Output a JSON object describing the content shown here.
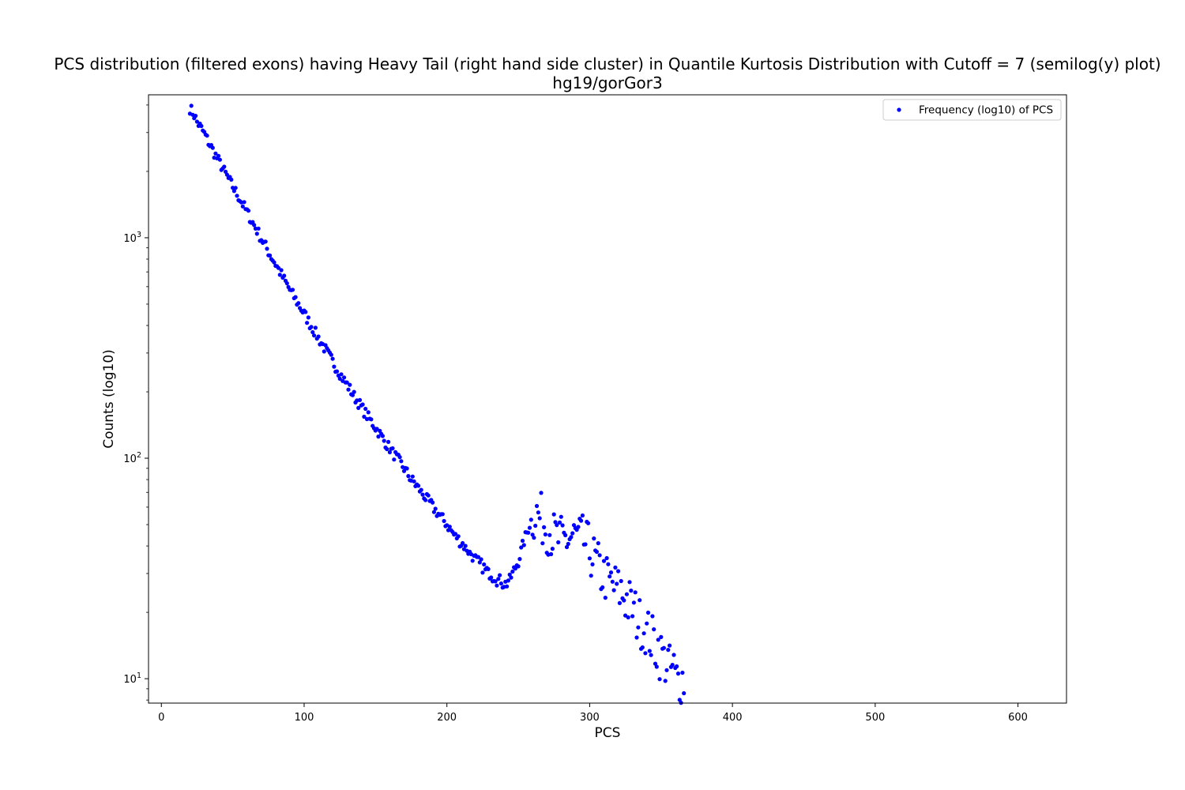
{
  "chart_data": {
    "type": "scatter",
    "title": "PCS distribution (filtered exons) having Heavy Tail (right hand side cluster) in Quantile Kurtosis Distribution with Cutoff = 7 (semilog(y) plot)",
    "subtitle": "hg19/gorGor3",
    "xlabel": "PCS",
    "ylabel": "Counts (log10)",
    "xlim": [
      -9,
      634
    ],
    "ylim": [
      7.75,
      4450
    ],
    "yscale": "log",
    "xticks": [
      0,
      100,
      200,
      300,
      400,
      500,
      600
    ],
    "xtick_labels": [
      "0",
      "100",
      "200",
      "300",
      "400",
      "500",
      "600"
    ],
    "yticks": [
      10,
      100,
      1000
    ],
    "ytick_base": "10",
    "ytick_exponents": [
      "1",
      "2",
      "3"
    ],
    "grid": false,
    "legend_position": "upper-right",
    "series": [
      {
        "name": "Frequency (log10) of PCS",
        "color": "#0000ff",
        "x_start": 20,
        "x_step": 1,
        "y": [
          3870,
          3780,
          3700,
          3600,
          3480,
          3350,
          3280,
          3200,
          3120,
          3050,
          2960,
          2890,
          2800,
          2720,
          2640,
          2570,
          2500,
          2430,
          2360,
          2300,
          2240,
          2180,
          2120,
          2060,
          2000,
          1950,
          1900,
          1850,
          1800,
          1750,
          1710,
          1660,
          1620,
          1580,
          1540,
          1500,
          1460,
          1420,
          1380,
          1340,
          1310,
          1270,
          1240,
          1200,
          1170,
          1140,
          1110,
          1080,
          1050,
          1020,
          990,
          965,
          940,
          915,
          890,
          865,
          840,
          820,
          800,
          780,
          760,
          740,
          720,
          700,
          680,
          662,
          645,
          628,
          612,
          596,
          580,
          566,
          552,
          538,
          525,
          512,
          500,
          488,
          476,
          464,
          452,
          441,
          430,
          419,
          408,
          398,
          388,
          378,
          369,
          360,
          351,
          342,
          334,
          326,
          318,
          310,
          302,
          295,
          288,
          281,
          274,
          267,
          261,
          255,
          249,
          243,
          237,
          231,
          226,
          221,
          216,
          211,
          206,
          201,
          196,
          191,
          187,
          183,
          179,
          175,
          171,
          167,
          163,
          160,
          156,
          153,
          150,
          147,
          144,
          141,
          138,
          135,
          132,
          129,
          126,
          123,
          120,
          118,
          115,
          113,
          111,
          108,
          106,
          104,
          102,
          100,
          98,
          96,
          94,
          92,
          90,
          88,
          86,
          84,
          82,
          80,
          79,
          78,
          76,
          75,
          73,
          72,
          70,
          69,
          68,
          66,
          65,
          64,
          63,
          62,
          60,
          59,
          58,
          57,
          56,
          55,
          54,
          53,
          52,
          51,
          50,
          49,
          48,
          47,
          46,
          45,
          44,
          44,
          43,
          42,
          41,
          41,
          40,
          39,
          39,
          38,
          37,
          37,
          36,
          35,
          35,
          34,
          34,
          33,
          33,
          32,
          32,
          31,
          31,
          30,
          30,
          30,
          29,
          29,
          29,
          28,
          28,
          28,
          28,
          27,
          27,
          27,
          27,
          28,
          28,
          29,
          30,
          31,
          32,
          33,
          34,
          36,
          38,
          40,
          42,
          44,
          46,
          48,
          50,
          52,
          54,
          55,
          56,
          56,
          55,
          54,
          53,
          52,
          51,
          50,
          49,
          48,
          47,
          46,
          45,
          44,
          44,
          43,
          43,
          42,
          42,
          42,
          42,
          43,
          43,
          43,
          43,
          44,
          44,
          44,
          44,
          44,
          43,
          43,
          43,
          42,
          42,
          41,
          40,
          39,
          38,
          37,
          36,
          35,
          34,
          33,
          32,
          31,
          30,
          30,
          29,
          29,
          28,
          28,
          27,
          27,
          27,
          26,
          26,
          26,
          25,
          25,
          25,
          24,
          24,
          23,
          23,
          22,
          22,
          21,
          21,
          20,
          20,
          19,
          19,
          18,
          18,
          17,
          17,
          17,
          16,
          16,
          16,
          15,
          15,
          15,
          14,
          14,
          14,
          13,
          13,
          13,
          12,
          12,
          12,
          12,
          11,
          11,
          11,
          11,
          10,
          10,
          10,
          10,
          10,
          10,
          10
        ]
      }
    ],
    "noise_seed": 7
  }
}
